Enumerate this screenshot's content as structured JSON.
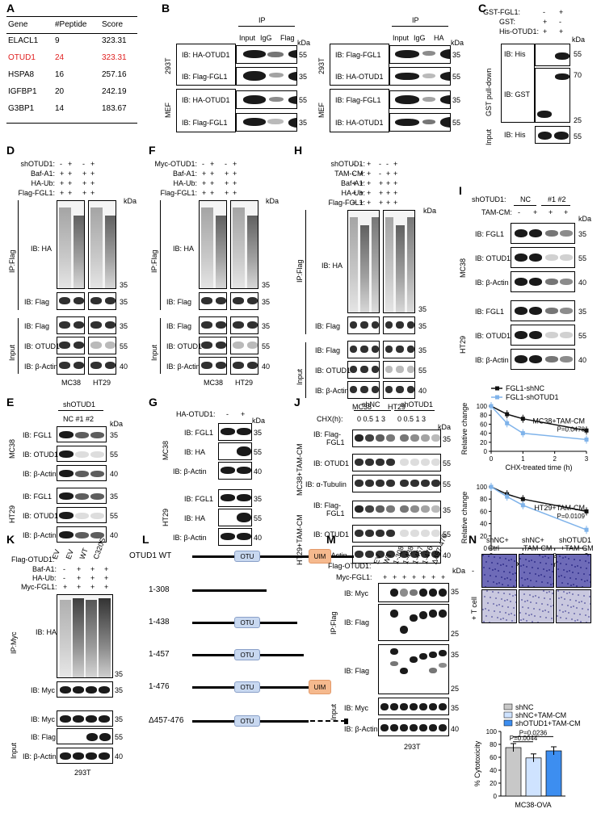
{
  "panels": {
    "A": "A",
    "B": "B",
    "C": "C",
    "D": "D",
    "E": "E",
    "F": "F",
    "G": "G",
    "H": "H",
    "I": "I",
    "J": "J",
    "K": "K",
    "L": "L",
    "M": "M",
    "N": "N"
  },
  "tableA": {
    "headers": [
      "Gene",
      "#Peptide",
      "Score"
    ],
    "rows": [
      [
        "ELACL1",
        "9",
        "323.31"
      ],
      [
        "OTUD1",
        "24",
        "323.31"
      ],
      [
        "HSPA8",
        "16",
        "257.16"
      ],
      [
        "IGFBP1",
        "20",
        "242.19"
      ],
      [
        "G3BP1",
        "14",
        "183.67"
      ]
    ],
    "highlight_color": "#e02020"
  },
  "common": {
    "kda": "kDa",
    "ip": "IP",
    "input": "Input",
    "igg": "IgG",
    "flag": "Flag",
    "ha": "HA",
    "mc38": "MC38",
    "ht29": "HT29",
    "t293": "293T",
    "mef": "MEF",
    "ipflag": "IP:Flag",
    "ipmyc": "IP:Myc",
    "plus": "+",
    "minus": "-"
  },
  "B": {
    "left_ib": [
      "IB: HA-OTUD1",
      "IB: Flag-FGL1",
      "IB: HA-OTUD1",
      "IB: Flag-FGL1"
    ],
    "right_ib": [
      "IB: Flag-FGL1",
      "IB: HA-OTUD1",
      "IB: Flag-FGL1",
      "IB: HA-OTUD1"
    ],
    "mw_left": [
      "55",
      "35",
      "55",
      "35"
    ],
    "mw_right": [
      "35",
      "55",
      "35",
      "55"
    ]
  },
  "C": {
    "rows": [
      "GST-FGL1:",
      "GST:",
      "His-OTUD1:"
    ],
    "ib": [
      "IB: His",
      "IB: GST",
      "IB: His"
    ],
    "side": [
      "GST pull-down",
      "Input"
    ],
    "mw": [
      "55",
      "70",
      "25",
      "55"
    ]
  },
  "D": {
    "rows": [
      "shOTUD1:",
      "Baf-A1:",
      "HA-Ub:",
      "Flag-FGL1:"
    ],
    "ib": [
      "IB: HA",
      "IB: Flag",
      "IB: Flag",
      "IB: OTUD1",
      "IB: β-Actin"
    ],
    "mw": [
      "35",
      "35",
      "35",
      "55",
      "40"
    ]
  },
  "E": {
    "header": "shOTUD1",
    "lanes": "NC #1 #2",
    "ib": [
      "IB: FGL1",
      "IB: OTUD1",
      "IB: β-Actin",
      "IB: FGL1",
      "IB: OTUD1",
      "IB: β-Actin"
    ],
    "mw": [
      "35",
      "55",
      "40",
      "35",
      "55",
      "40"
    ]
  },
  "F": {
    "rows": [
      "Myc-OTUD1:",
      "Baf-A1:",
      "HA-Ub:",
      "Flag-FGL1:"
    ],
    "ib": [
      "IB: HA",
      "IB: Flag",
      "IB: Flag",
      "IB: OTUD1",
      "IB: β-Actin"
    ],
    "mw": [
      "35",
      "35",
      "35",
      "55",
      "40"
    ]
  },
  "G": {
    "row": "HA-OTUD1:",
    "ib": [
      "IB: FGL1",
      "IB: HA",
      "IB: β-Actin",
      "IB: FGL1",
      "IB: HA",
      "IB: β-Actin"
    ],
    "mw": [
      "35",
      "55",
      "40",
      "35",
      "55",
      "40"
    ]
  },
  "H": {
    "rows": [
      "shOTUD1:",
      "TAM-CM:",
      "Baf-A1:",
      "HA-Ub:",
      "Flag-FGL1:"
    ],
    "ib": [
      "IB: HA",
      "IB: Flag",
      "IB: Flag",
      "IB: OTUD1",
      "IB: β-Actin"
    ],
    "mw": [
      "35",
      "35",
      "35",
      "55",
      "40"
    ]
  },
  "I": {
    "row1": "shOTUD1:",
    "row2": "TAM-CM:",
    "nc": "NC",
    "kd": "#1 #2",
    "ib": [
      "IB: FGL1",
      "IB: OTUD1",
      "IB: β-Actin",
      "IB: FGL1",
      "IB: OTUD1",
      "IB: β-Actin"
    ],
    "mw": [
      "35",
      "55",
      "40",
      "35",
      "55",
      "40"
    ]
  },
  "J": {
    "row": "CHX(h):",
    "groups": [
      "shNC",
      "shOTUD1"
    ],
    "times": "0 0.5 1 3",
    "side": [
      "MC38+TAM-CM",
      "HT29+TAM-CM"
    ],
    "ib": [
      "IB: Flag-",
      "FGL1",
      "IB: OTUD1",
      "IB: α-Tubulin",
      "IB: Flag-",
      "FGL1",
      "IB: OTUD1",
      "IB: β-Actin"
    ],
    "mw": [
      "35",
      "55",
      "55",
      "35",
      "55",
      "40"
    ]
  },
  "chart_data": [
    {
      "type": "line",
      "title": "MC38+TAM-CM",
      "xlabel": "CHX-treated time (h)",
      "ylabel": "Relative change",
      "x": [
        0,
        0.5,
        1,
        3
      ],
      "xticks": [
        "0",
        "1",
        "2",
        "3"
      ],
      "yticks": [
        "0",
        "20",
        "40",
        "60",
        "80",
        "100"
      ],
      "ylim": [
        0,
        100
      ],
      "series": [
        {
          "name": "FGL1-shNC",
          "values": [
            100,
            82,
            72,
            46
          ],
          "color": "#111111"
        },
        {
          "name": "FGL1-shOTUD1",
          "values": [
            100,
            62,
            40,
            26
          ],
          "color": "#7fb3ea"
        }
      ],
      "pvalue": "P=0.0478"
    },
    {
      "type": "line",
      "title": "HT29+TAM-CM",
      "xlabel": "CHX-treated time (h)",
      "ylabel": "Relative change",
      "x": [
        0,
        0.5,
        1,
        3
      ],
      "xticks": [
        "0",
        "1",
        "2",
        "3"
      ],
      "yticks": [
        "0",
        "20",
        "40",
        "60",
        "80",
        "100"
      ],
      "ylim": [
        0,
        100
      ],
      "series": [
        {
          "name": "FGL1-shNC",
          "values": [
            100,
            88,
            80,
            60
          ],
          "color": "#111111"
        },
        {
          "name": "FGL1-shOTUD1",
          "values": [
            100,
            84,
            70,
            30
          ],
          "color": "#7fb3ea"
        }
      ],
      "pvalue": "P=0.0109"
    },
    {
      "type": "bar",
      "title": "MC38-OVA",
      "ylabel": "% Cytotoxicity",
      "categories": [
        "shNC",
        "shNC+TAM-CM",
        "shOTUD1+TAM-CM"
      ],
      "values": [
        75,
        59,
        70
      ],
      "colors": [
        "#c8c8c8",
        "#cfe3ff",
        "#3d8ef0"
      ],
      "yticks": [
        "0",
        "20",
        "40",
        "60",
        "80",
        "100"
      ],
      "ylim": [
        0,
        100
      ],
      "pvalues": [
        "P=0.0044",
        "P=0.0236"
      ]
    }
  ],
  "K": {
    "row1": "Flag-OTUD1:",
    "lanes": [
      "EV",
      "EV",
      "WT",
      "C320S"
    ],
    "rows": [
      "Baf-A1:",
      "HA-Ub:",
      "Myc-FGL1:"
    ],
    "ib": [
      "IB: HA",
      "IB: Myc",
      "IB: Myc",
      "IB: Flag",
      "IB: β-Actin"
    ],
    "mw": [
      "35",
      "35",
      "35",
      "55",
      "40"
    ]
  },
  "L": {
    "constructs": [
      "OTUD1 WT",
      "1-308",
      "1-438",
      "1-457",
      "1-476",
      "Δ457-476"
    ],
    "otu": "OTU",
    "uim": "UIM",
    "otu_color": "#c8d8f0",
    "uim_color": "#f5b98e"
  },
  "M": {
    "row1": "Flag-OTUD1:",
    "lanes": [
      "EV",
      "WT",
      "1-308",
      "1-438",
      "1-457",
      "1-476",
      "Δ457-476"
    ],
    "row2": "Myc-FGL1:",
    "ib": [
      "IB: Myc",
      "IB: Flag",
      "IB: Flag",
      "IB: Myc",
      "IB: β-Actin"
    ],
    "mw": [
      "35",
      "25",
      "35",
      "25",
      "35",
      "40"
    ]
  },
  "N": {
    "cols": [
      "shNC+",
      "Ctrl",
      "shNC+",
      "TAM-CM",
      "shOTUD1",
      "+TAM-CM"
    ],
    "rows": [
      "-",
      "+ T cell"
    ],
    "legend": [
      "shNC",
      "shNC+TAM-CM",
      "shOTUD1+TAM-CM"
    ]
  }
}
